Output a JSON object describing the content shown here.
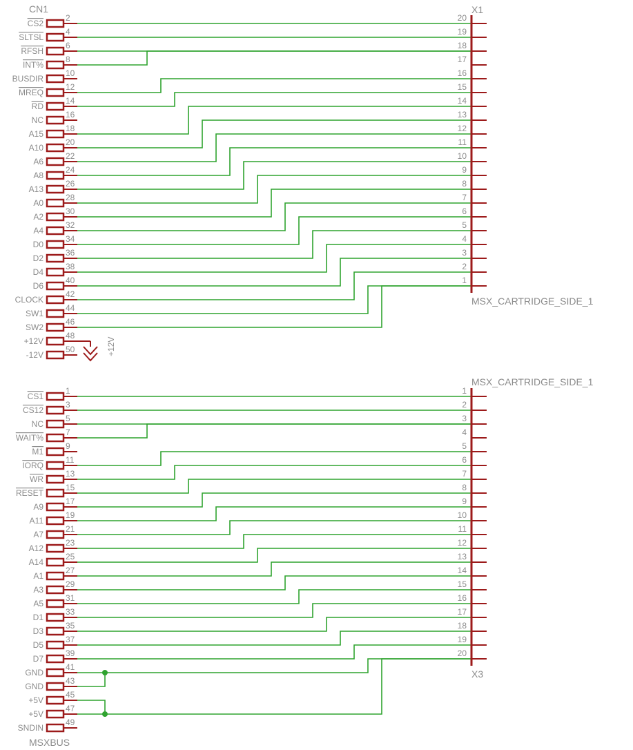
{
  "cn1": {
    "ref": "CN1",
    "name": "MSXBUS",
    "pins_a": [
      {
        "num": "2",
        "label": "CS2",
        "bar": true
      },
      {
        "num": "4",
        "label": "SLTSL",
        "bar": true
      },
      {
        "num": "6",
        "label": "RFSH",
        "bar": true
      },
      {
        "num": "8",
        "label": "INT%",
        "bar": true
      },
      {
        "num": "10",
        "label": "BUSDIR",
        "bar": false
      },
      {
        "num": "12",
        "label": "MREQ",
        "bar": true
      },
      {
        "num": "14",
        "label": "RD",
        "bar": true
      },
      {
        "num": "16",
        "label": "NC",
        "bar": false
      },
      {
        "num": "18",
        "label": "A15",
        "bar": false
      },
      {
        "num": "20",
        "label": "A10",
        "bar": false
      },
      {
        "num": "22",
        "label": "A6",
        "bar": false
      },
      {
        "num": "24",
        "label": "A8",
        "bar": false
      },
      {
        "num": "26",
        "label": "A13",
        "bar": false
      },
      {
        "num": "28",
        "label": "A0",
        "bar": false
      },
      {
        "num": "30",
        "label": "A2",
        "bar": false
      },
      {
        "num": "32",
        "label": "A4",
        "bar": false
      },
      {
        "num": "34",
        "label": "D0",
        "bar": false
      },
      {
        "num": "36",
        "label": "D2",
        "bar": false
      },
      {
        "num": "38",
        "label": "D4",
        "bar": false
      },
      {
        "num": "40",
        "label": "D6",
        "bar": false
      },
      {
        "num": "42",
        "label": "CLOCK",
        "bar": false
      },
      {
        "num": "44",
        "label": "SW1",
        "bar": false
      },
      {
        "num": "46",
        "label": "SW2",
        "bar": false
      },
      {
        "num": "48",
        "label": "+12V",
        "bar": false
      },
      {
        "num": "50",
        "label": "-12V",
        "bar": false
      }
    ],
    "pins_b": [
      {
        "num": "1",
        "label": "CS1",
        "bar": true
      },
      {
        "num": "3",
        "label": "CS12",
        "bar": true
      },
      {
        "num": "5",
        "label": "NC",
        "bar": false
      },
      {
        "num": "7",
        "label": "WAIT%",
        "bar": true
      },
      {
        "num": "9",
        "label": "M1",
        "bar": true
      },
      {
        "num": "11",
        "label": "IORQ",
        "bar": true
      },
      {
        "num": "13",
        "label": "WR",
        "bar": true
      },
      {
        "num": "15",
        "label": "RESET",
        "bar": true
      },
      {
        "num": "17",
        "label": "A9",
        "bar": false
      },
      {
        "num": "19",
        "label": "A11",
        "bar": false
      },
      {
        "num": "21",
        "label": "A7",
        "bar": false
      },
      {
        "num": "23",
        "label": "A12",
        "bar": false
      },
      {
        "num": "25",
        "label": "A14",
        "bar": false
      },
      {
        "num": "27",
        "label": "A1",
        "bar": false
      },
      {
        "num": "29",
        "label": "A3",
        "bar": false
      },
      {
        "num": "31",
        "label": "A5",
        "bar": false
      },
      {
        "num": "33",
        "label": "D1",
        "bar": false
      },
      {
        "num": "35",
        "label": "D3",
        "bar": false
      },
      {
        "num": "37",
        "label": "D5",
        "bar": false
      },
      {
        "num": "39",
        "label": "D7",
        "bar": false
      },
      {
        "num": "41",
        "label": "GND",
        "bar": false
      },
      {
        "num": "43",
        "label": "GND",
        "bar": false
      },
      {
        "num": "45",
        "label": "+5V",
        "bar": false
      },
      {
        "num": "47",
        "label": "+5V",
        "bar": false
      },
      {
        "num": "49",
        "label": "SNDIN",
        "bar": false
      }
    ]
  },
  "x1": {
    "ref": "X1",
    "value": "MSX_CARTRIDGE_SIDE_1",
    "pins": [
      "20",
      "19",
      "18",
      "17",
      "16",
      "15",
      "14",
      "13",
      "12",
      "11",
      "10",
      "9",
      "8",
      "7",
      "6",
      "5",
      "4",
      "3",
      "2",
      "1"
    ]
  },
  "x3": {
    "ref": "X3",
    "value": "MSX_CARTRIDGE_SIDE_1",
    "pins": [
      "1",
      "2",
      "3",
      "4",
      "5",
      "6",
      "7",
      "8",
      "9",
      "10",
      "11",
      "12",
      "13",
      "14",
      "15",
      "16",
      "17",
      "18",
      "19",
      "20"
    ]
  },
  "power_symbol": {
    "label": "+12V"
  },
  "colors": {
    "symbol": "#9c1a1a",
    "wire": "#2fa32f",
    "text": "#8c8c8c",
    "background": "#ffffff"
  }
}
